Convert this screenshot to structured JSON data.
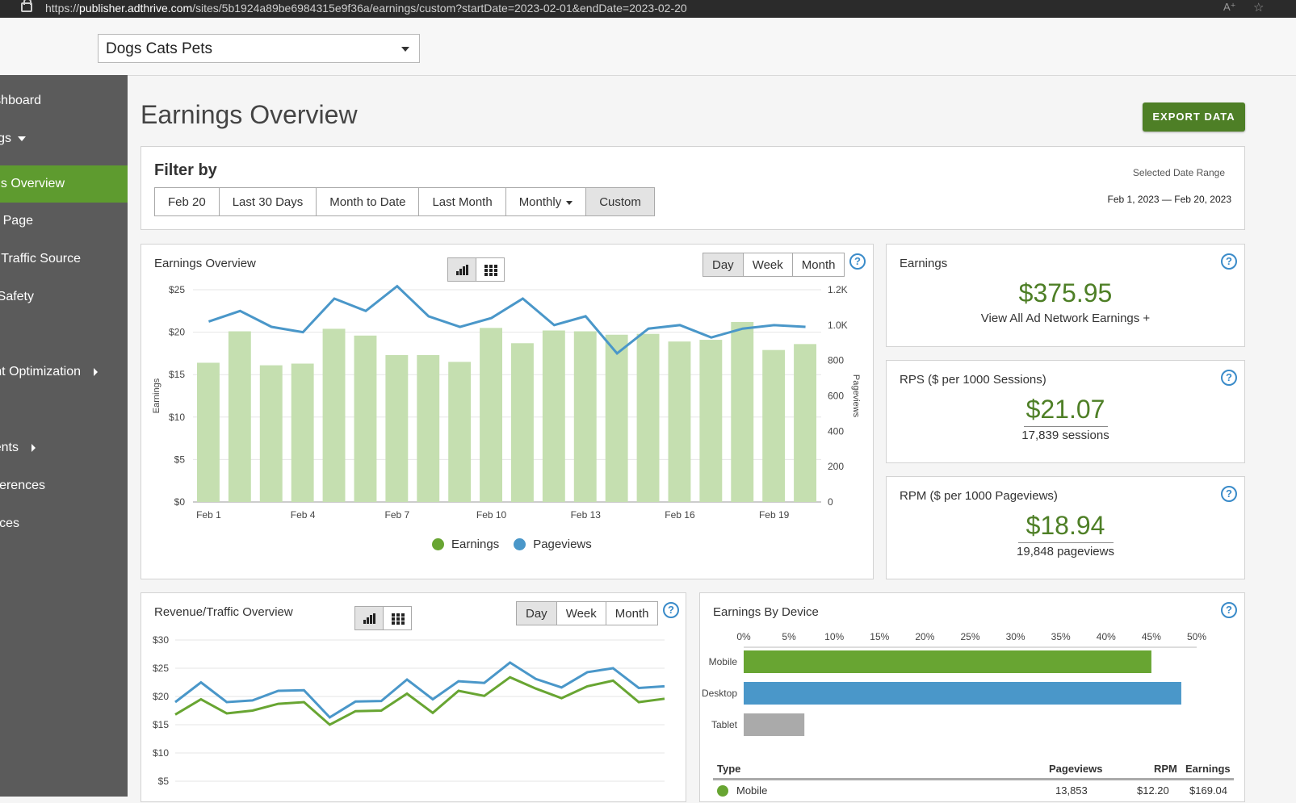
{
  "browser": {
    "url_prefix": "https://",
    "url_host": "publisher.adthrive.com",
    "url_path": "/sites/5b1924a89be6984315e9f36a/earnings/custom?startDate=2023-02-01&endDate=2023-02-20"
  },
  "header": {
    "site_name": "Dogs Cats Pets"
  },
  "sidebar": {
    "items": [
      {
        "label": "shboard"
      },
      {
        "label": "gs"
      },
      {
        "label": "gs Overview"
      },
      {
        "label": "y Page"
      },
      {
        "label": "y Traffic Source"
      },
      {
        "label": "Safety"
      },
      {
        "label": "nt Optimization"
      },
      {
        "label": "ents"
      },
      {
        "label": "eferences"
      },
      {
        "label": "rces"
      }
    ]
  },
  "page": {
    "title": "Earnings Overview",
    "export_label": "EXPORT DATA"
  },
  "filter": {
    "title": "Filter by",
    "options": [
      "Feb 20",
      "Last 30 Days",
      "Month to Date",
      "Last Month",
      "Monthly",
      "Custom"
    ],
    "selected": "Custom",
    "range_label": "Selected Date Range",
    "range_value": "Feb 1, 2023 — Feb 20, 2023"
  },
  "earnings_chart": {
    "title": "Earnings Overview",
    "periods": [
      "Day",
      "Week",
      "Month"
    ],
    "selected_period": "Day",
    "legend": [
      "Earnings",
      "Pageviews"
    ]
  },
  "stats": {
    "earnings": {
      "title": "Earnings",
      "value": "$375.95",
      "sub": "View All Ad Network Earnings +"
    },
    "rps": {
      "title": "RPS ($ per 1000 Sessions)",
      "value": "$21.07",
      "sub": "17,839 sessions"
    },
    "rpm": {
      "title": "RPM ($ per 1000 Pageviews)",
      "value": "$18.94",
      "sub": "19,848 pageviews"
    }
  },
  "revenue_chart": {
    "title": "Revenue/Traffic Overview",
    "periods": [
      "Day",
      "Week",
      "Month"
    ],
    "selected_period": "Day"
  },
  "device": {
    "title": "Earnings By Device",
    "table_headers": [
      "Type",
      "Pageviews",
      "RPM",
      "Earnings"
    ],
    "rows": [
      {
        "type": "Mobile",
        "pageviews": "13,853",
        "rpm": "$12.20",
        "earnings": "$169.04"
      }
    ]
  },
  "colors": {
    "accent_green": "#4e7f26",
    "earnings_green": "#68a532",
    "pageviews_blue": "#4a97c9",
    "tablet_gray": "#aaaaaa"
  },
  "chart_data": [
    {
      "type": "bar",
      "title": "Earnings Overview",
      "x_tick_labels": [
        "Feb 1",
        "Feb 4",
        "Feb 7",
        "Feb 10",
        "Feb 13",
        "Feb 16",
        "Feb 19"
      ],
      "categories": [
        "Feb 1",
        "Feb 2",
        "Feb 3",
        "Feb 4",
        "Feb 5",
        "Feb 6",
        "Feb 7",
        "Feb 8",
        "Feb 9",
        "Feb 10",
        "Feb 11",
        "Feb 12",
        "Feb 13",
        "Feb 14",
        "Feb 15",
        "Feb 16",
        "Feb 17",
        "Feb 18",
        "Feb 19",
        "Feb 20"
      ],
      "ylabel": "Earnings",
      "y2label": "Pageviews",
      "y_ticks": [
        "$0",
        "$5",
        "$10",
        "$15",
        "$20",
        "$25"
      ],
      "y2_ticks": [
        "0",
        "200",
        "400",
        "600",
        "800",
        "1.0K",
        "1.2K"
      ],
      "ylim": [
        0,
        25
      ],
      "y2lim": [
        0,
        1200
      ],
      "series": [
        {
          "name": "Earnings",
          "type": "bar",
          "axis": "left",
          "values": [
            16.4,
            20.1,
            16.1,
            16.3,
            20.4,
            19.6,
            17.3,
            17.3,
            16.5,
            20.5,
            18.7,
            20.2,
            20.1,
            19.7,
            19.8,
            18.9,
            19.1,
            21.2,
            17.9,
            18.6
          ]
        },
        {
          "name": "Pageviews",
          "type": "line",
          "axis": "right",
          "values": [
            1020,
            1080,
            990,
            960,
            1150,
            1080,
            1220,
            1050,
            990,
            1040,
            1150,
            1000,
            1050,
            840,
            980,
            1000,
            930,
            980,
            1000,
            990
          ]
        }
      ]
    },
    {
      "type": "line",
      "title": "Revenue/Traffic Overview",
      "y_ticks": [
        "$5",
        "$10",
        "$15",
        "$20",
        "$25",
        "$30"
      ],
      "ylim": [
        3,
        30
      ],
      "series": [
        {
          "values": [
            19.0,
            22.5,
            19.0,
            19.3,
            21.0,
            21.1,
            16.3,
            19.1,
            19.2,
            23.0,
            19.5,
            22.7,
            22.4,
            26.0,
            23.1,
            21.6,
            24.3,
            25.0,
            21.5,
            21.8
          ]
        },
        {
          "values": [
            16.8,
            19.5,
            17.0,
            17.5,
            18.7,
            19.0,
            15.0,
            17.4,
            17.5,
            20.5,
            17.1,
            21.0,
            20.1,
            23.4,
            21.4,
            19.7,
            21.8,
            22.8,
            19.0,
            19.6
          ]
        }
      ]
    },
    {
      "type": "bar",
      "title": "Earnings By Device",
      "orientation": "horizontal",
      "categories": [
        "Mobile",
        "Desktop",
        "Tablet"
      ],
      "values": [
        45.0,
        48.3,
        6.7
      ],
      "x_ticks": [
        "0%",
        "5%",
        "10%",
        "15%",
        "20%",
        "25%",
        "30%",
        "35%",
        "40%",
        "45%",
        "50%"
      ],
      "xlim": [
        0,
        50
      ]
    }
  ]
}
